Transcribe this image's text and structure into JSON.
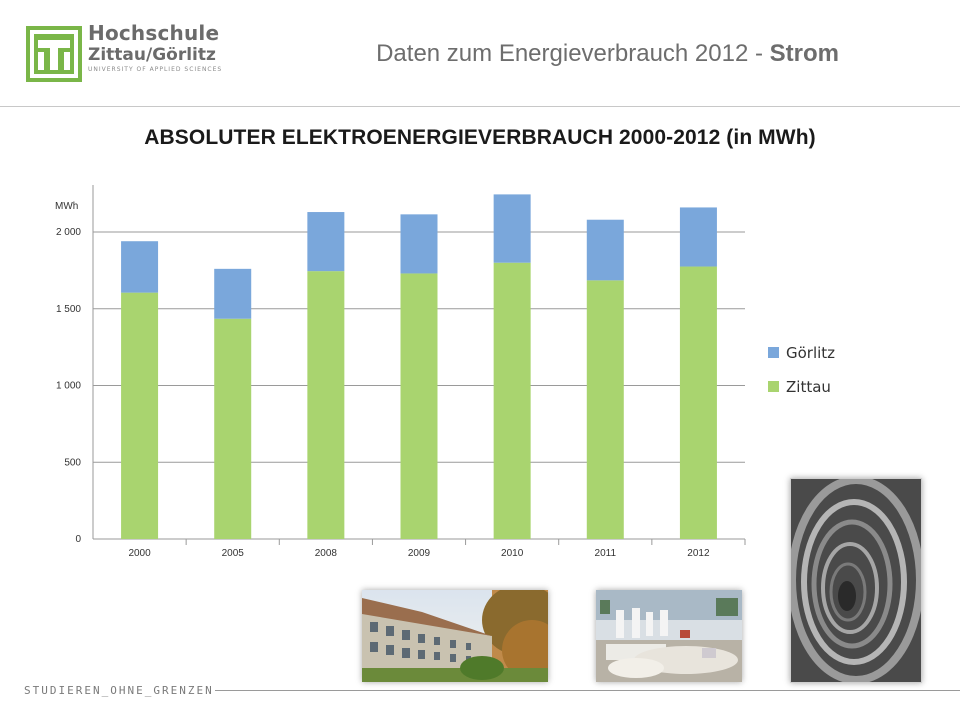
{
  "header": {
    "logo": {
      "line1": "Hochschule",
      "line2": "Zittau/Görlitz",
      "line3": "UNIVERSITY OF APPLIED SCIENCES",
      "color": "#7ab648"
    },
    "title_prefix": "Daten zum Energieverbrauch 2012 - ",
    "title_bold": "Strom"
  },
  "main_title": "ABSOLUTER ELEKTROENERGIEVERBRAUCH  2000-2012 (in MWh)",
  "chart_data": {
    "type": "bar",
    "stacked": true,
    "categories": [
      "2000",
      "2005",
      "2008",
      "2009",
      "2010",
      "2011",
      "2012"
    ],
    "series": [
      {
        "name": "Zittau",
        "color": "#a9d46f",
        "values": [
          1605,
          1435,
          1745,
          1730,
          1800,
          1685,
          1775
        ]
      },
      {
        "name": "Görlitz",
        "color": "#7aa7db",
        "values": [
          335,
          325,
          385,
          385,
          445,
          395,
          385
        ]
      }
    ],
    "ylabel": "MWh",
    "ylim": [
      0,
      2300
    ],
    "yticks": [
      0,
      500,
      1000,
      1500,
      2000
    ],
    "ytick_labels": [
      "0",
      "500",
      "1 000",
      "1 500",
      "2 000"
    ],
    "grid": true,
    "legend": {
      "position": "right",
      "order": [
        "Görlitz",
        "Zittau"
      ]
    }
  },
  "photos": [
    {
      "name": "campus-building-photo"
    },
    {
      "name": "laboratory-photo"
    },
    {
      "name": "spiral-staircase-photo"
    }
  ],
  "footer": {
    "text": "STUDIEREN_OHNE_GRENZEN"
  }
}
